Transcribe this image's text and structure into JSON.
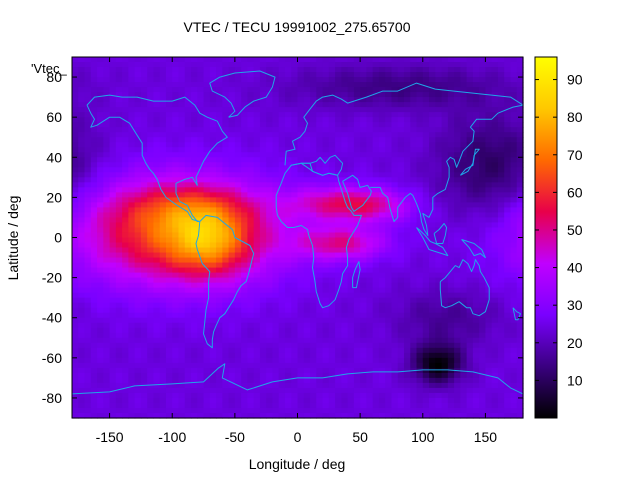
{
  "chart_data": {
    "type": "heatmap",
    "title": "VTEC / TECU 19991002_275.65700",
    "series_label": "'Vtec_",
    "xlabel": "Longitude / deg",
    "ylabel": "Latitude / deg",
    "xlim": [
      -180,
      180
    ],
    "ylim": [
      -90,
      90
    ],
    "x_ticks": [
      -150,
      -100,
      -50,
      0,
      50,
      100,
      150
    ],
    "y_ticks": [
      -80,
      -60,
      -40,
      -20,
      0,
      20,
      40,
      60,
      80
    ],
    "colorbar": {
      "min": 0,
      "max": 96,
      "ticks": [
        10,
        20,
        30,
        40,
        50,
        60,
        70,
        80,
        90
      ]
    },
    "grid": false,
    "overlay": "coastlines",
    "field_components": [
      {
        "name": "background",
        "value": 24
      },
      {
        "name": "americas-equatorial-peak",
        "lon": -95,
        "lat": 3,
        "amplitude": 43,
        "sigma_lon": 55,
        "sigma_lat": 18
      },
      {
        "name": "south-america-peak",
        "lon": -70,
        "lat": -2,
        "amplitude": 22,
        "sigma_lon": 22,
        "sigma_lat": 12
      },
      {
        "name": "caribbean-crest",
        "lon": -90,
        "lat": 15,
        "amplitude": 10,
        "sigma_lon": 35,
        "sigma_lat": 8
      },
      {
        "name": "africa-crest-north",
        "lon": 35,
        "lat": 17,
        "amplitude": 24,
        "sigma_lon": 28,
        "sigma_lat": 6
      },
      {
        "name": "africa-crest-south",
        "lon": 35,
        "lat": -3,
        "amplitude": 24,
        "sigma_lon": 25,
        "sigma_lat": 6
      },
      {
        "name": "arabia-tail",
        "lon": 65,
        "lat": 15,
        "amplitude": 12,
        "sigma_lon": 22,
        "sigma_lat": 6
      },
      {
        "name": "pacific-trough",
        "lon": 155,
        "lat": 35,
        "amplitude": -14,
        "sigma_lon": 30,
        "sigma_lat": 18
      },
      {
        "name": "arctic-trough",
        "lon": 80,
        "lat": 75,
        "amplitude": -10,
        "sigma_lon": 60,
        "sigma_lat": 8
      },
      {
        "name": "antarctic-hole",
        "lon": 112,
        "lat": -63,
        "amplitude": -24,
        "sigma_lon": 14,
        "sigma_lat": 7
      },
      {
        "name": "southern-indian-trough",
        "lon": 120,
        "lat": -40,
        "amplitude": -8,
        "sigma_lon": 30,
        "sigma_lat": 10
      }
    ]
  },
  "colors": {
    "coastline": "#1fa6e8",
    "colormap": [
      "#000000",
      "#3a0080",
      "#7a00ff",
      "#c000ff",
      "#e8004a",
      "#ff6a00",
      "#ffc800",
      "#ffff00"
    ]
  }
}
